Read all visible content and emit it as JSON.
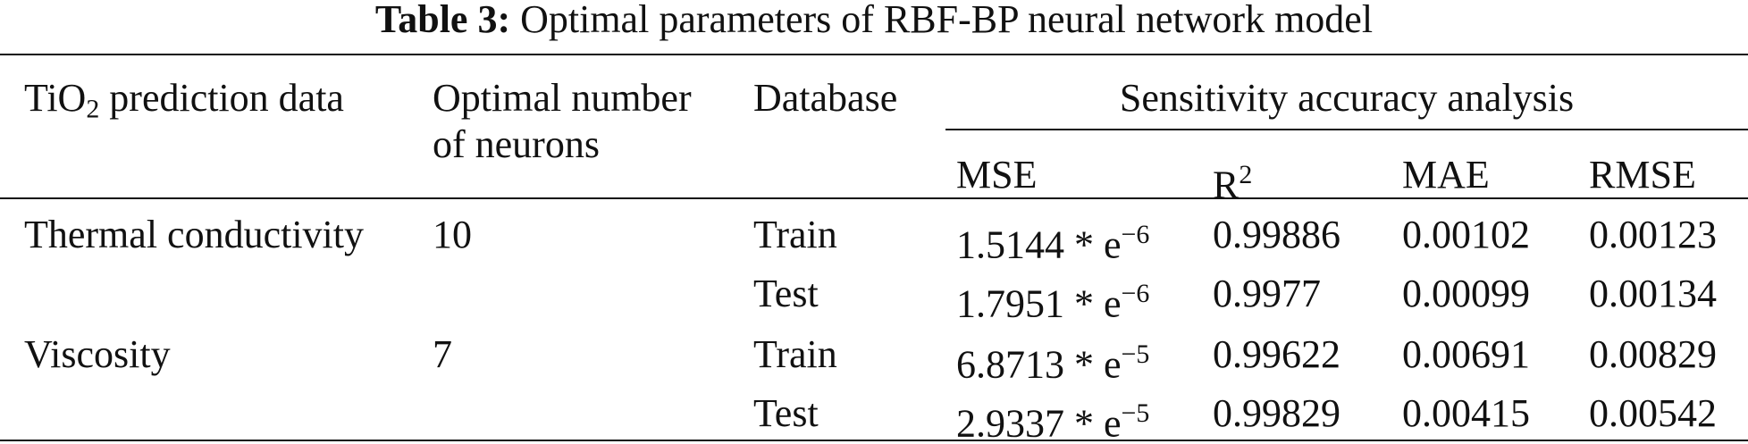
{
  "title": {
    "label": "Table 3:",
    "text": "Optimal parameters of RBF-BP neural network model"
  },
  "table": {
    "header": [
      {
        "prefix": "TiO",
        "sub": "2",
        "suffix": "prediction data"
      },
      {
        "line1": "Optimal number",
        "line2": "of neurons"
      },
      "Database",
      {
        "group": "Sensitivity accuracy analysis",
        "columns": [
          "MSE",
          {
            "base": "R",
            "sup": "2"
          },
          "MAE",
          "RMSE"
        ]
      }
    ],
    "groups": [
      {
        "name": "Thermal conductivity",
        "neurons": "10",
        "rows": [
          {
            "database": "Train",
            "mse": {
              "base": "1.5144 * e",
              "exp": "−6"
            },
            "r2": "0.99886",
            "mae": "0.00102",
            "rmse": "0.00123"
          },
          {
            "database": "Test",
            "mse": {
              "base": "1.7951 * e",
              "exp": "−6"
            },
            "r2": "0.9977",
            "mae": "0.00099",
            "rmse": "0.00134"
          }
        ]
      },
      {
        "name": "Viscosity",
        "neurons": "7",
        "rows": [
          {
            "database": "Train",
            "mse": {
              "base": "6.8713 * e",
              "exp": "−5"
            },
            "r2": "0.99622",
            "mae": "0.00691",
            "rmse": "0.00829"
          },
          {
            "database": "Test",
            "mse": {
              "base": "2.9337 * e",
              "exp": "−5"
            },
            "r2": "0.99829",
            "mae": "0.00415",
            "rmse": "0.00542"
          }
        ]
      }
    ]
  }
}
